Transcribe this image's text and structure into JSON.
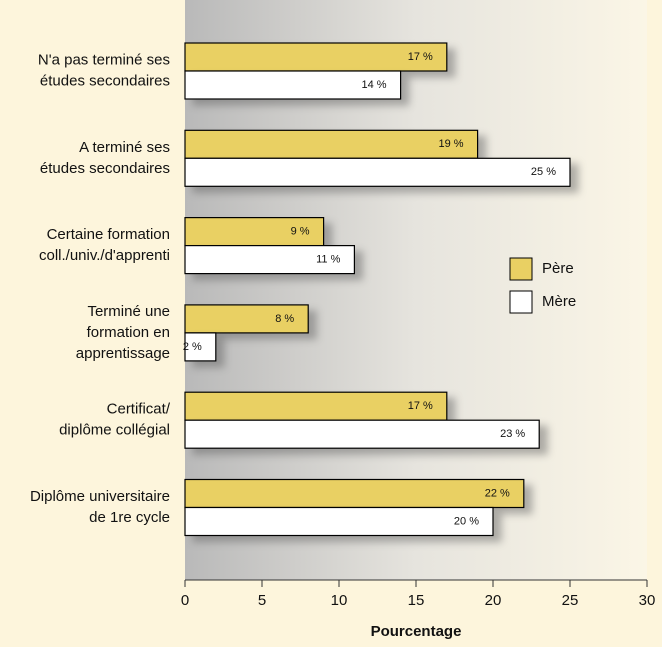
{
  "chart_data": {
    "type": "bar",
    "orientation": "horizontal",
    "categories": [
      "N'a pas terminé ses\nétudes secondaires",
      "A terminé ses\nétudes secondaires",
      "Certaine formation\ncoll./univ./d'apprenti",
      "Terminé une\nformation en\napprentissage",
      "Certificat/\ndiplôme collégial",
      "Diplôme universitaire\nde 1re cycle"
    ],
    "series": [
      {
        "name": "Père",
        "color": "#e9d063",
        "values": [
          17,
          19,
          9,
          8,
          17,
          22
        ],
        "value_labels": [
          "17 %",
          "19 %",
          "9 %",
          "8 %",
          "17 %",
          "22 %"
        ]
      },
      {
        "name": "Mère",
        "color": "#ffffff",
        "values": [
          14,
          25,
          11,
          2,
          23,
          20
        ],
        "value_labels": [
          "14 %",
          "25 %",
          "11 %",
          "2 %",
          "23 %",
          "20 %"
        ]
      }
    ],
    "xlabel": "Pourcentage",
    "xlim": [
      0,
      30
    ],
    "xticks": [
      0,
      5,
      10,
      15,
      20,
      25,
      30
    ],
    "legend": "right"
  }
}
